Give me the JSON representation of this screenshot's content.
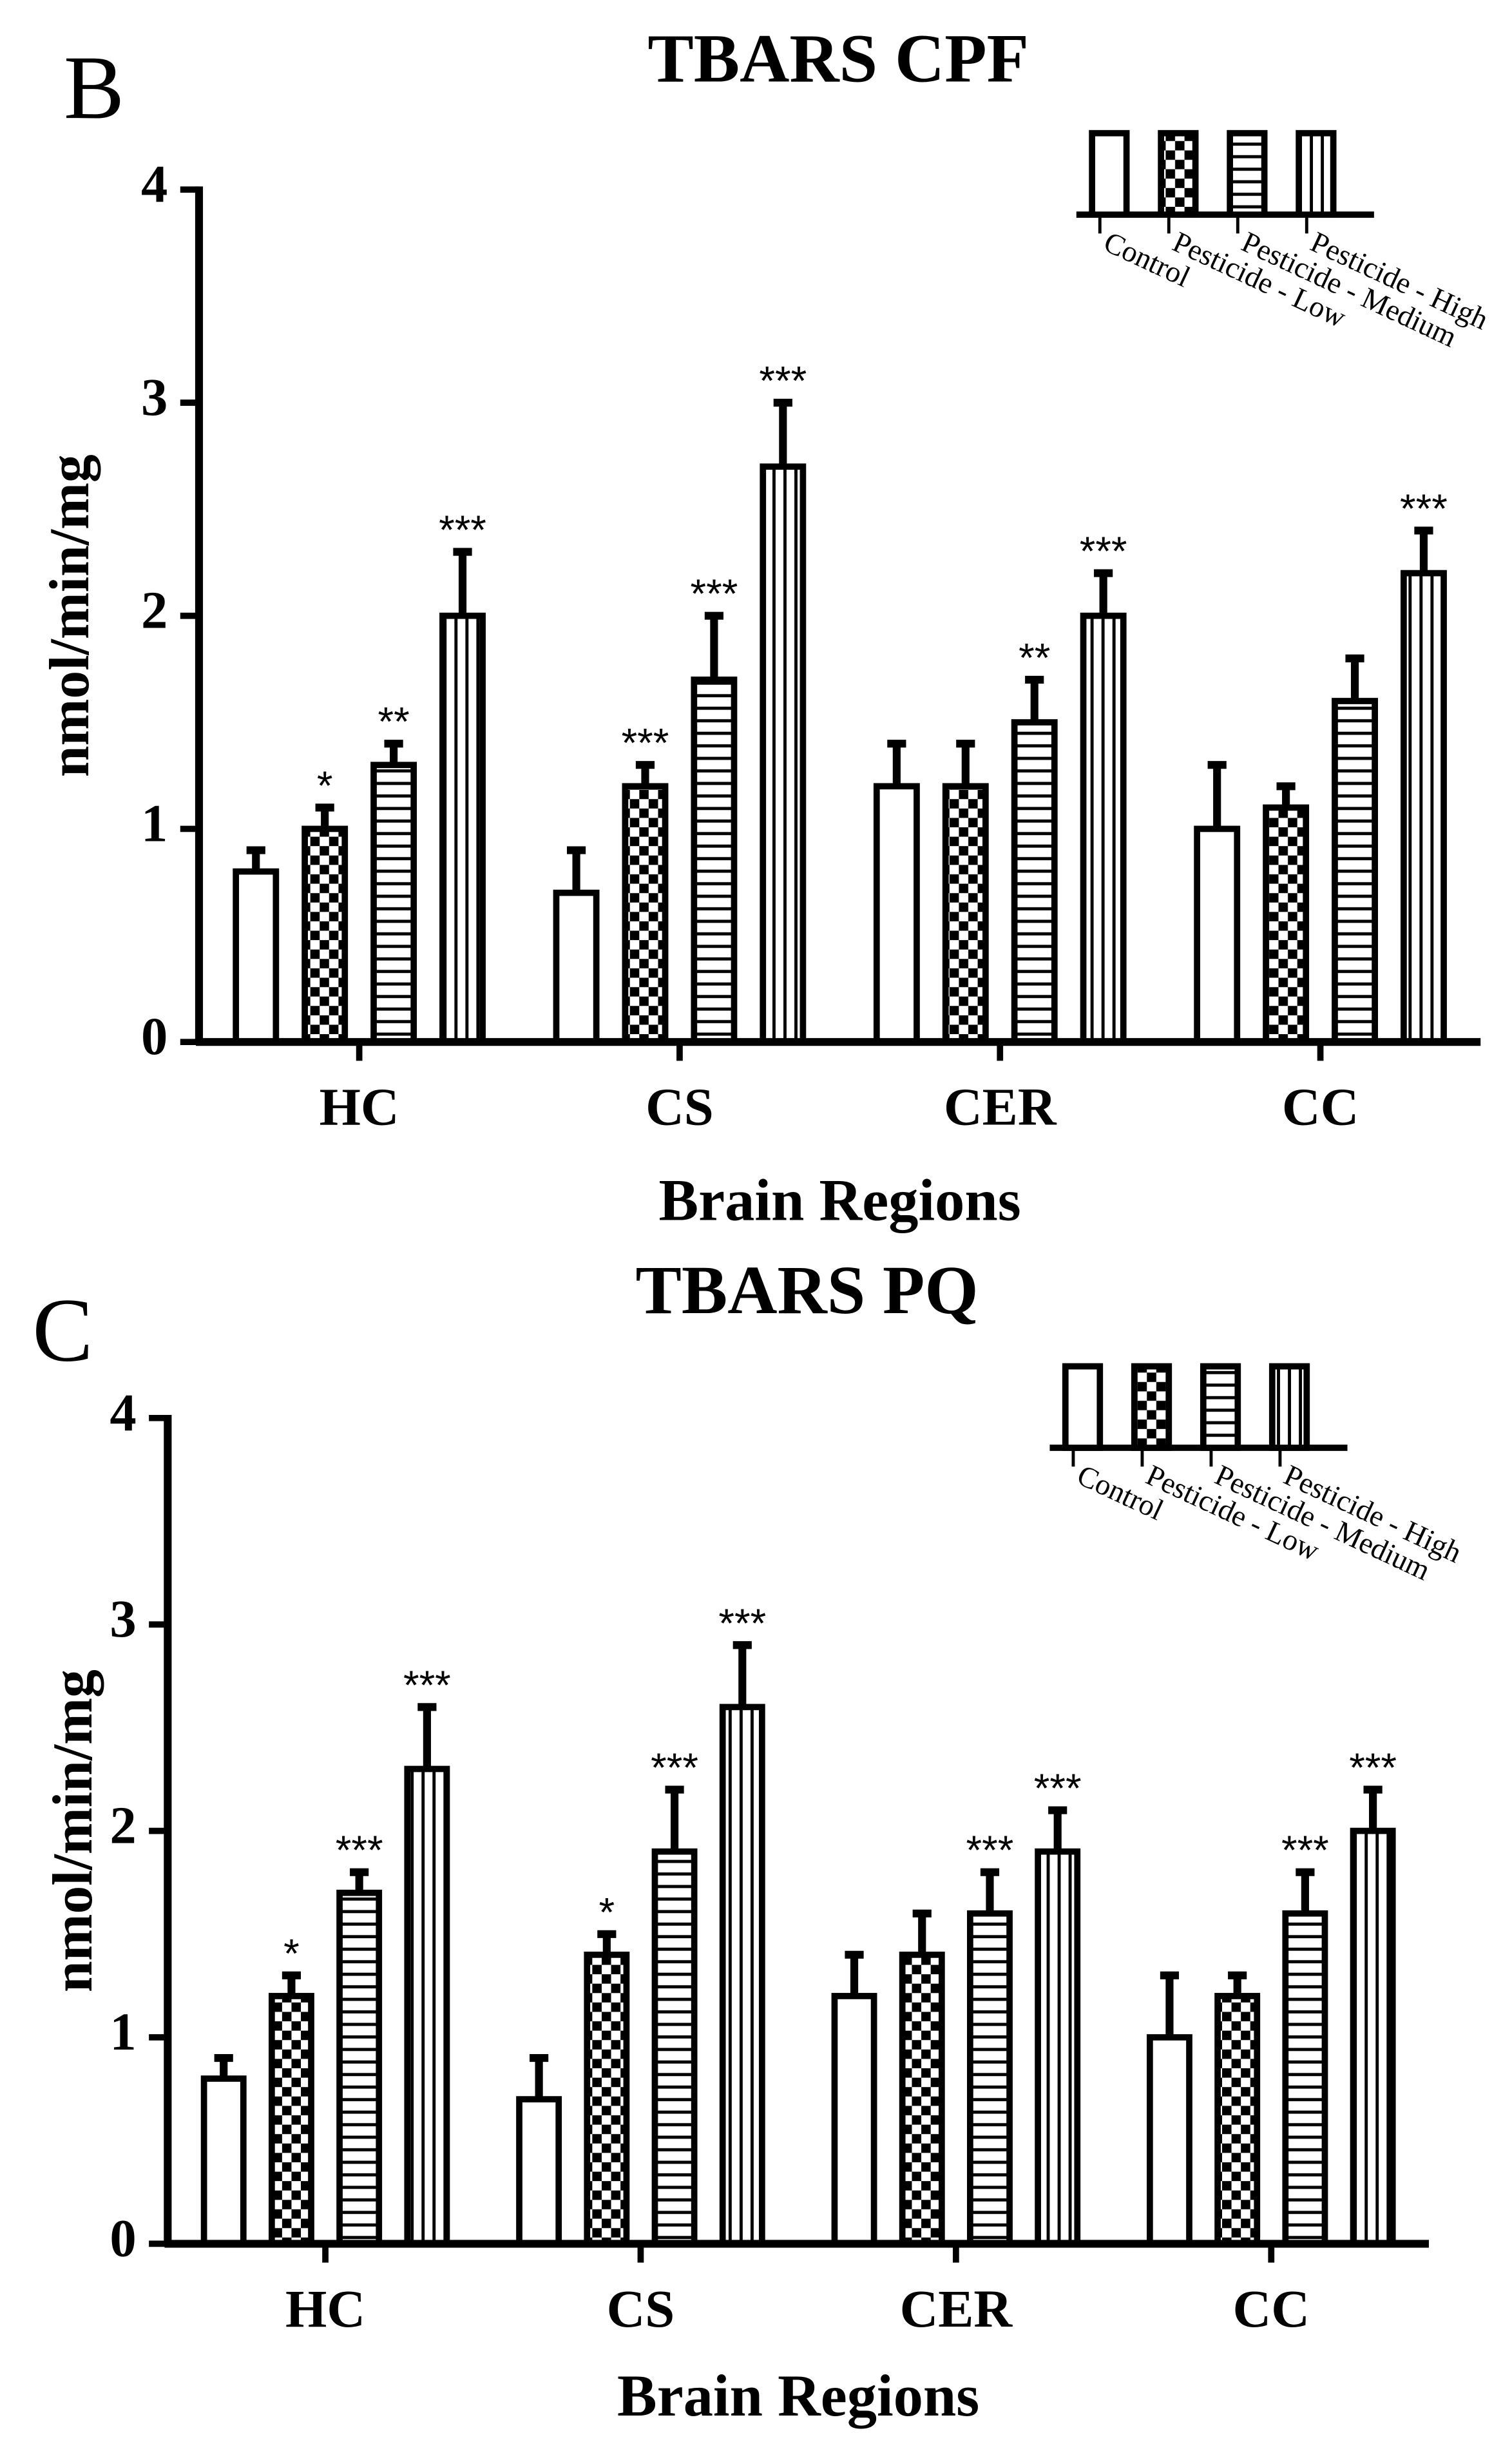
{
  "chart_data": [
    {
      "type": "bar",
      "panel": "B",
      "title": "TBARS CPF",
      "ylabel": "nmol/min/mg",
      "xlabel": "Brain Regions",
      "categories": [
        "HC",
        "CS",
        "CER",
        "CC"
      ],
      "ylim": [
        0,
        4
      ],
      "yticks": [
        0,
        1,
        2,
        3,
        4
      ],
      "legend": "upper right",
      "series": [
        {
          "name": "Control",
          "color": "#000000",
          "pattern": "none",
          "values": [
            0.8,
            0.7,
            1.2,
            1.0
          ],
          "errors": [
            0.1,
            0.2,
            0.2,
            0.3
          ],
          "annotations": [
            null,
            null,
            null,
            null
          ]
        },
        {
          "name": "Pesticide - Low",
          "color": "#000000",
          "pattern": "checker",
          "values": [
            1.0,
            1.2,
            1.2,
            1.1
          ],
          "errors": [
            0.1,
            0.1,
            0.2,
            0.1
          ],
          "annotations": [
            "*",
            "***",
            null,
            null
          ]
        },
        {
          "name": "Pesticide - Medium",
          "color": "#000000",
          "pattern": "hstripe",
          "values": [
            1.3,
            1.7,
            1.5,
            1.6
          ],
          "errors": [
            0.1,
            0.3,
            0.2,
            0.2
          ],
          "annotations": [
            "**",
            "***",
            "**",
            null
          ]
        },
        {
          "name": "Pesticide - High",
          "color": "#000000",
          "pattern": "vstripe",
          "values": [
            2.0,
            2.7,
            2.0,
            2.2
          ],
          "errors": [
            0.3,
            0.3,
            0.2,
            0.2
          ],
          "annotations": [
            "***",
            "***",
            "***",
            "***"
          ]
        }
      ]
    },
    {
      "type": "bar",
      "panel": "C",
      "title": "TBARS PQ",
      "ylabel": "nmol/min/mg",
      "xlabel": "Brain Regions",
      "categories": [
        "HC",
        "CS",
        "CER",
        "CC"
      ],
      "ylim": [
        0,
        4
      ],
      "yticks": [
        0,
        1,
        2,
        3,
        4
      ],
      "legend": "upper right",
      "series": [
        {
          "name": "Control",
          "color": "#000000",
          "pattern": "none",
          "values": [
            0.8,
            0.7,
            1.2,
            1.0
          ],
          "errors": [
            0.1,
            0.2,
            0.2,
            0.3
          ],
          "annotations": [
            null,
            null,
            null,
            null
          ]
        },
        {
          "name": "Pesticide - Low",
          "color": "#000000",
          "pattern": "checker",
          "values": [
            1.2,
            1.4,
            1.4,
            1.2
          ],
          "errors": [
            0.1,
            0.1,
            0.2,
            0.1
          ],
          "annotations": [
            "*",
            "*",
            null,
            null
          ]
        },
        {
          "name": "Pesticide - Medium",
          "color": "#000000",
          "pattern": "hstripe",
          "values": [
            1.7,
            1.9,
            1.6,
            1.6
          ],
          "errors": [
            0.1,
            0.3,
            0.2,
            0.2
          ],
          "annotations": [
            "***",
            "***",
            "***",
            "***"
          ]
        },
        {
          "name": "Pesticide - High",
          "color": "#000000",
          "pattern": "vstripe",
          "values": [
            2.3,
            2.6,
            1.9,
            2.0
          ],
          "errors": [
            0.3,
            0.3,
            0.2,
            0.2
          ],
          "annotations": [
            "***",
            "***",
            "***",
            "***"
          ]
        }
      ]
    }
  ]
}
